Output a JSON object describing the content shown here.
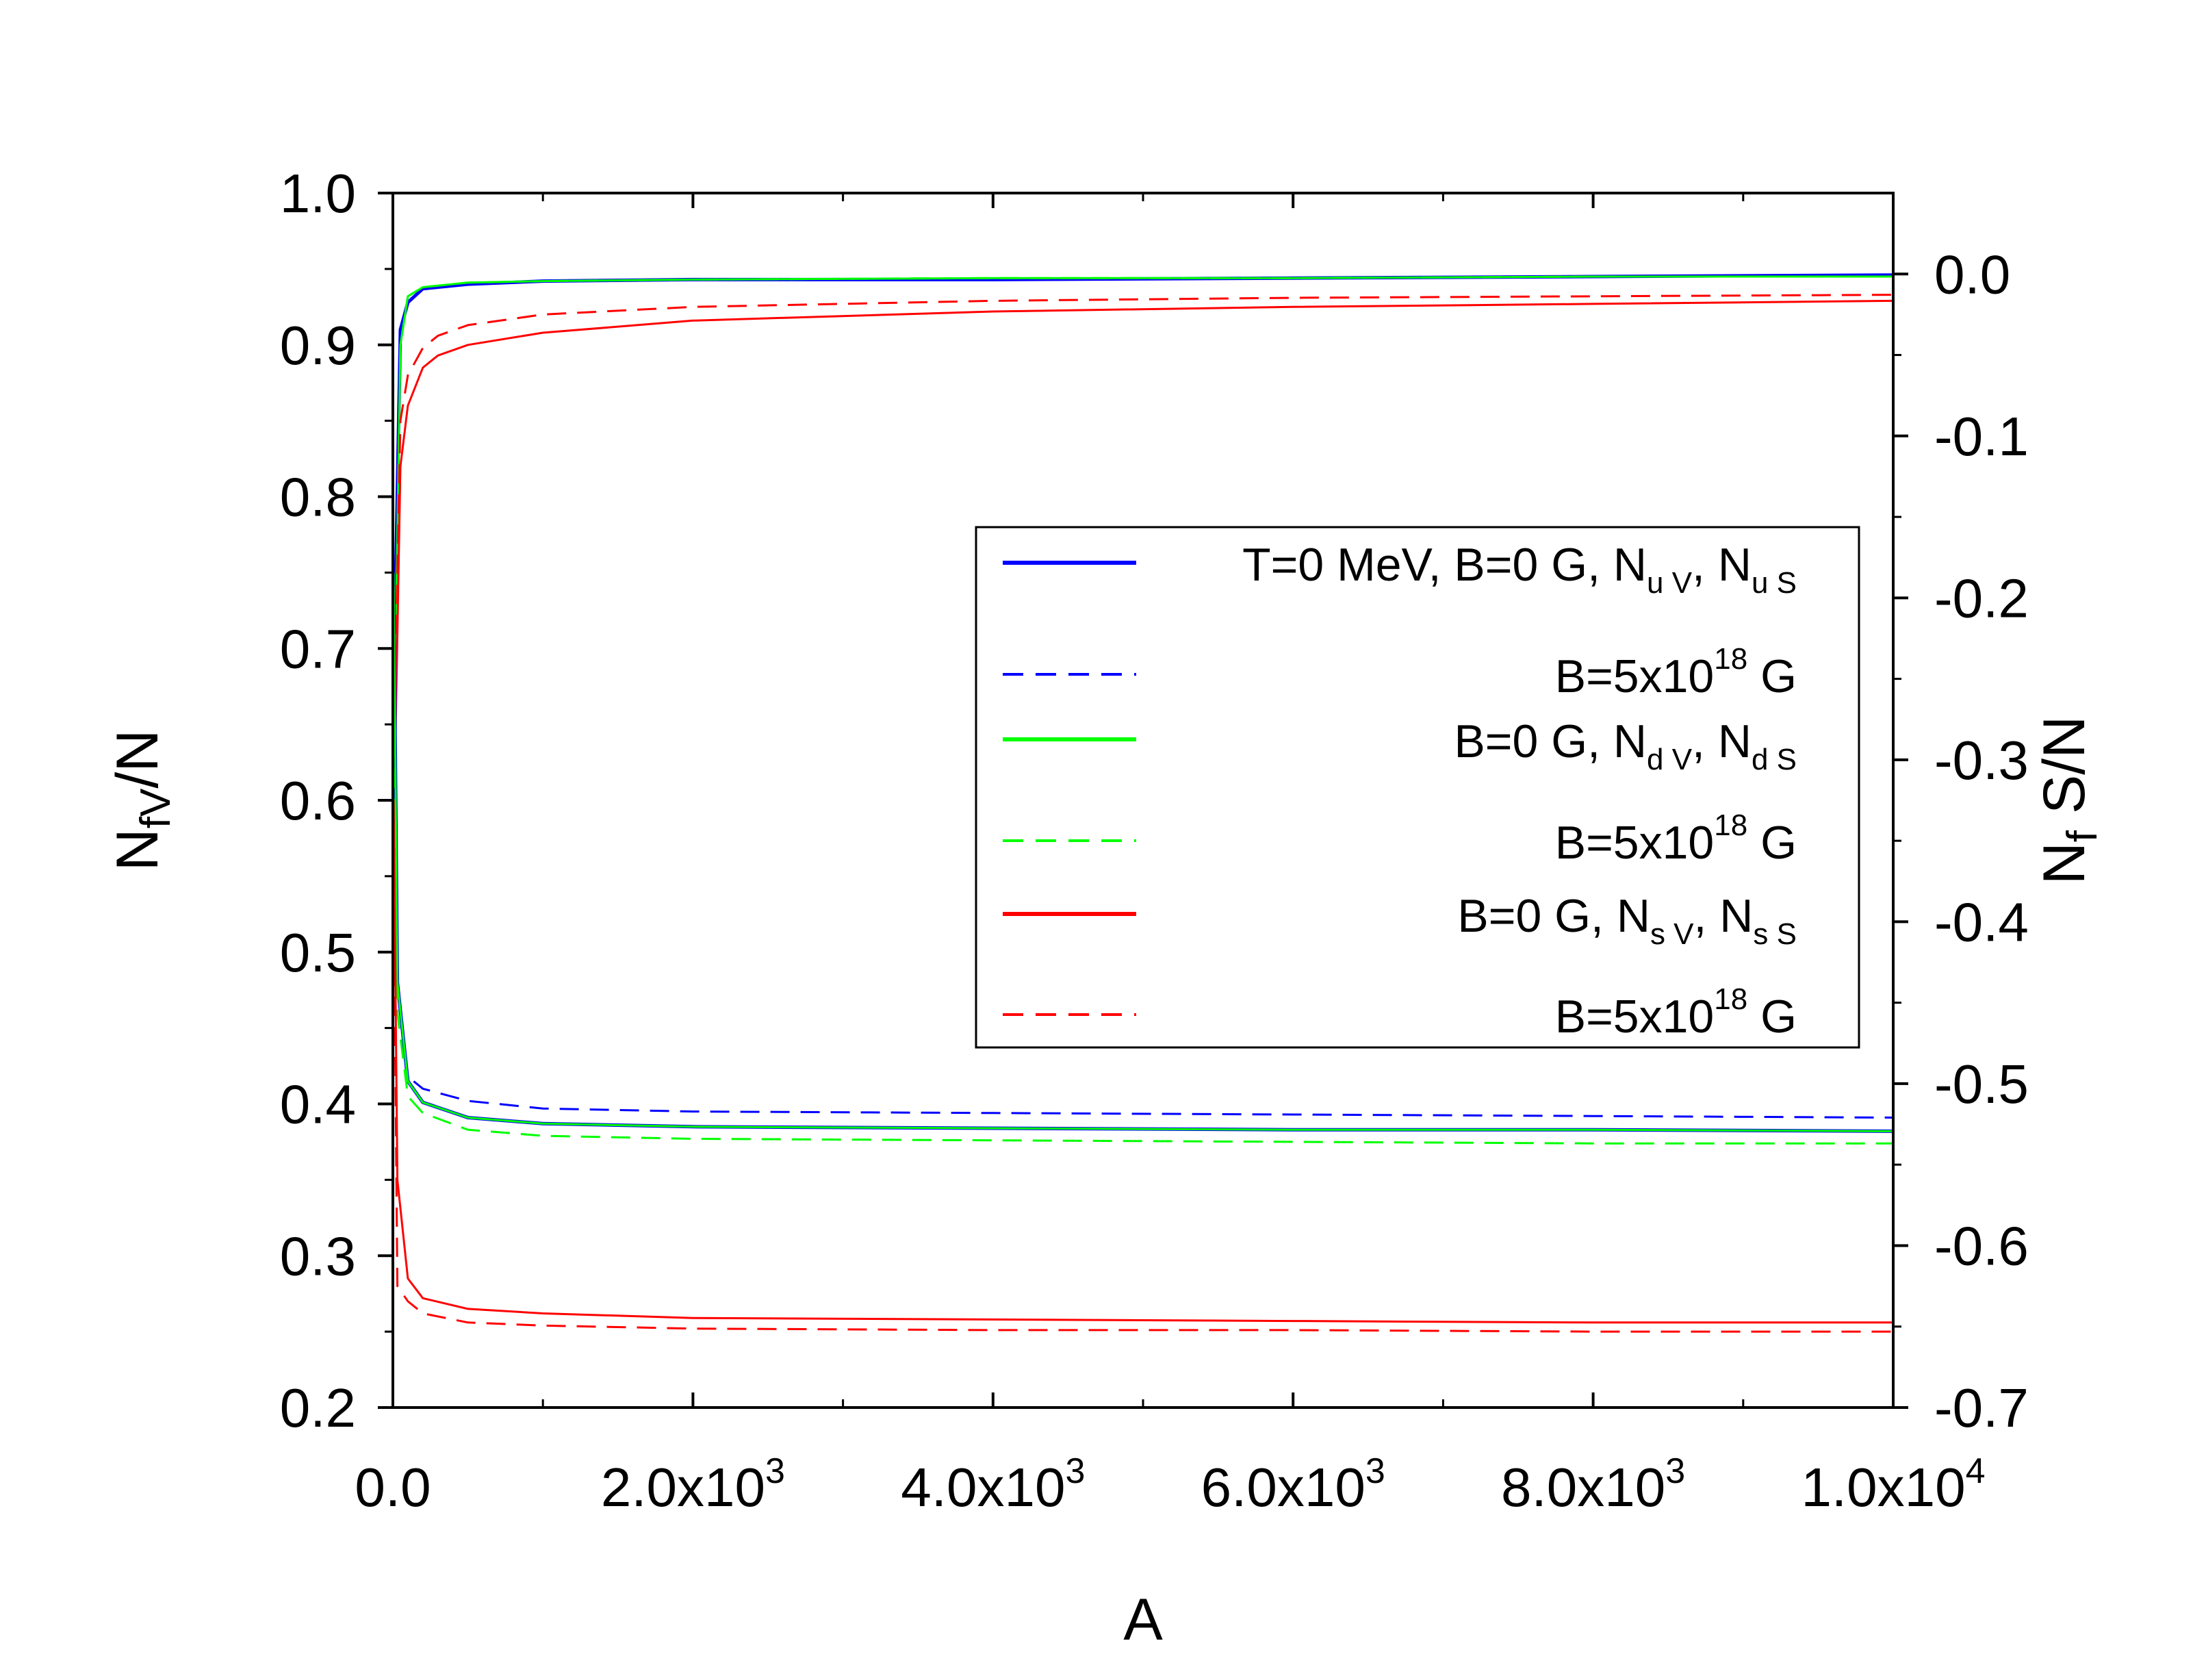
{
  "chart_data": {
    "type": "line",
    "title": "",
    "xlabel": "A",
    "ylabel": {
      "base": "N",
      "sub": "fV",
      "tail": "/N"
    },
    "ylabel_right": {
      "base": "N",
      "sub": "f",
      "tail": " S/N"
    },
    "xlim": [
      0,
      10000
    ],
    "ylim": [
      0.2,
      1.0
    ],
    "ylim_right": [
      -0.7,
      0.05
    ],
    "x_ticks": [
      {
        "value": 0,
        "mant": "0.0",
        "exp": ""
      },
      {
        "value": 2000,
        "mant": "2.0x10",
        "exp": "3"
      },
      {
        "value": 4000,
        "mant": "4.0x10",
        "exp": "3"
      },
      {
        "value": 6000,
        "mant": "6.0x10",
        "exp": "3"
      },
      {
        "value": 8000,
        "mant": "8.0x10",
        "exp": "3"
      },
      {
        "value": 10000,
        "mant": "1.0x10",
        "exp": "4"
      }
    ],
    "y_ticks": [
      {
        "value": 0.2,
        "label": "0.2"
      },
      {
        "value": 0.3,
        "label": "0.3"
      },
      {
        "value": 0.4,
        "label": "0.4"
      },
      {
        "value": 0.5,
        "label": "0.5"
      },
      {
        "value": 0.6,
        "label": "0.6"
      },
      {
        "value": 0.7,
        "label": "0.7"
      },
      {
        "value": 0.8,
        "label": "0.8"
      },
      {
        "value": 0.9,
        "label": "0.9"
      },
      {
        "value": 1.0,
        "label": "1.0"
      }
    ],
    "y_ticks_right": [
      {
        "value": 0.0,
        "label": "0.0"
      },
      {
        "value": -0.1,
        "label": "-0.1"
      },
      {
        "value": -0.2,
        "label": "-0.2"
      },
      {
        "value": -0.3,
        "label": "-0.3"
      },
      {
        "value": -0.4,
        "label": "-0.4"
      },
      {
        "value": -0.5,
        "label": "-0.5"
      },
      {
        "value": -0.6,
        "label": "-0.6"
      },
      {
        "value": -0.7,
        "label": "-0.7"
      }
    ],
    "colors": {
      "u": "#0000ff",
      "d": "#00ff00",
      "s": "#ff0000"
    },
    "series": [
      {
        "name": "u V, B=0",
        "color": "#0000ff",
        "dash": false,
        "width": 5,
        "x": [
          10,
          50,
          100,
          200,
          500,
          1000,
          2000,
          4000,
          6000,
          8000,
          10000
        ],
        "y": [
          0.7,
          0.91,
          0.928,
          0.937,
          0.94,
          0.942,
          0.943,
          0.943,
          0.944,
          0.945,
          0.946
        ]
      },
      {
        "name": "u V, B=5x10^18",
        "color": "#0000ff",
        "dash": true,
        "width": 3,
        "x": [
          10,
          50,
          100,
          200,
          500,
          1000,
          2000,
          4000,
          6000,
          8000,
          10000
        ],
        "y": [
          0.7,
          0.91,
          0.928,
          0.937,
          0.94,
          0.942,
          0.943,
          0.943,
          0.944,
          0.945,
          0.946
        ]
      },
      {
        "name": "d V, B=0",
        "color": "#00ff00",
        "dash": false,
        "width": 3,
        "x": [
          10,
          50,
          100,
          200,
          500,
          1000,
          2000,
          4000,
          6000,
          8000,
          10000
        ],
        "y": [
          0.65,
          0.9,
          0.932,
          0.938,
          0.941,
          0.942,
          0.943,
          0.944,
          0.944,
          0.945,
          0.945
        ]
      },
      {
        "name": "d V, B=5x10^18",
        "color": "#00ff00",
        "dash": true,
        "width": 3,
        "x": [
          10,
          50,
          100,
          200,
          500,
          1000,
          2000,
          4000,
          6000,
          8000,
          10000
        ],
        "y": [
          0.65,
          0.9,
          0.932,
          0.938,
          0.941,
          0.942,
          0.943,
          0.944,
          0.944,
          0.945,
          0.945
        ]
      },
      {
        "name": "s V, B=0",
        "color": "#ff0000",
        "dash": false,
        "width": 3,
        "x": [
          10,
          50,
          100,
          200,
          300,
          500,
          1000,
          2000,
          4000,
          6000,
          8000,
          10000
        ],
        "y": [
          0.6,
          0.82,
          0.86,
          0.885,
          0.893,
          0.9,
          0.908,
          0.916,
          0.922,
          0.925,
          0.927,
          0.929
        ]
      },
      {
        "name": "s V, B=5x10^18",
        "color": "#ff0000",
        "dash": true,
        "width": 3,
        "x": [
          10,
          50,
          100,
          200,
          300,
          500,
          1000,
          2000,
          4000,
          6000,
          8000,
          10000
        ],
        "y": [
          0.65,
          0.85,
          0.88,
          0.898,
          0.906,
          0.913,
          0.92,
          0.925,
          0.929,
          0.931,
          0.932,
          0.933
        ]
      },
      {
        "name": "u S, B=0",
        "color": "#0000ff",
        "dash": false,
        "width": 5,
        "x": [
          5,
          30,
          100,
          200,
          500,
          1000,
          2000,
          4000,
          6000,
          8000,
          10000
        ],
        "y": [
          0.75,
          0.48,
          0.415,
          0.401,
          0.391,
          0.387,
          0.385,
          0.384,
          0.383,
          0.383,
          0.382
        ]
      },
      {
        "name": "u S, B=5x10^18",
        "color": "#0000ff",
        "dash": true,
        "width": 3,
        "x": [
          5,
          30,
          100,
          200,
          500,
          1000,
          2000,
          4000,
          6000,
          8000,
          10000
        ],
        "y": [
          0.75,
          0.48,
          0.418,
          0.41,
          0.402,
          0.397,
          0.395,
          0.394,
          0.393,
          0.392,
          0.391
        ]
      },
      {
        "name": "d S, B=0",
        "color": "#00ff00",
        "dash": false,
        "width": 3,
        "x": [
          5,
          30,
          100,
          200,
          500,
          1000,
          2000,
          4000,
          6000,
          8000,
          10000
        ],
        "y": [
          0.75,
          0.48,
          0.415,
          0.401,
          0.391,
          0.387,
          0.385,
          0.384,
          0.383,
          0.383,
          0.382
        ]
      },
      {
        "name": "d S, B=5x10^18",
        "color": "#00ff00",
        "dash": true,
        "width": 3,
        "x": [
          5,
          30,
          100,
          200,
          500,
          1000,
          2000,
          4000,
          6000,
          8000,
          10000
        ],
        "y": [
          0.72,
          0.46,
          0.405,
          0.394,
          0.383,
          0.379,
          0.377,
          0.376,
          0.375,
          0.374,
          0.374
        ]
      },
      {
        "name": "s S, B=0",
        "color": "#ff0000",
        "dash": false,
        "width": 3,
        "x": [
          5,
          30,
          100,
          200,
          500,
          1000,
          2000,
          4000,
          6000,
          8000,
          10000
        ],
        "y": [
          0.6,
          0.35,
          0.285,
          0.272,
          0.265,
          0.262,
          0.259,
          0.258,
          0.257,
          0.256,
          0.256
        ]
      },
      {
        "name": "s S, B=5x10^18",
        "color": "#ff0000",
        "dash": true,
        "width": 3,
        "x": [
          5,
          30,
          100,
          200,
          500,
          1000,
          2000,
          4000,
          6000,
          8000,
          10000
        ],
        "y": [
          0.55,
          0.28,
          0.27,
          0.262,
          0.256,
          0.254,
          0.252,
          0.251,
          0.251,
          0.25,
          0.25
        ]
      }
    ],
    "legend": {
      "position": "right-center",
      "entries": [
        {
          "color": "#0000ff",
          "dash": false,
          "parts": [
            {
              "t": "T=0 MeV, B=0 G, N"
            },
            {
              "sub": "u V"
            },
            {
              "t": ", N"
            },
            {
              "sub": "u S"
            }
          ]
        },
        {
          "color": "#0000ff",
          "dash": true,
          "parts": [
            {
              "t": "B=5x10"
            },
            {
              "sup": "18"
            },
            {
              "t": " G"
            }
          ]
        },
        {
          "color": "#00ff00",
          "dash": false,
          "parts": [
            {
              "t": "B=0 G, N"
            },
            {
              "sub": "d V"
            },
            {
              "t": ", N"
            },
            {
              "sub": "d S"
            }
          ]
        },
        {
          "color": "#00ff00",
          "dash": true,
          "parts": [
            {
              "t": "B=5x10"
            },
            {
              "sup": "18"
            },
            {
              "t": " G"
            }
          ]
        },
        {
          "color": "#ff0000",
          "dash": false,
          "parts": [
            {
              "t": "B=0 G, N"
            },
            {
              "sub": "s V"
            },
            {
              "t": ", N"
            },
            {
              "sub": "s S"
            }
          ]
        },
        {
          "color": "#ff0000",
          "dash": true,
          "parts": [
            {
              "t": "B=5x10"
            },
            {
              "sup": "18"
            },
            {
              "t": " G"
            }
          ]
        }
      ]
    }
  }
}
